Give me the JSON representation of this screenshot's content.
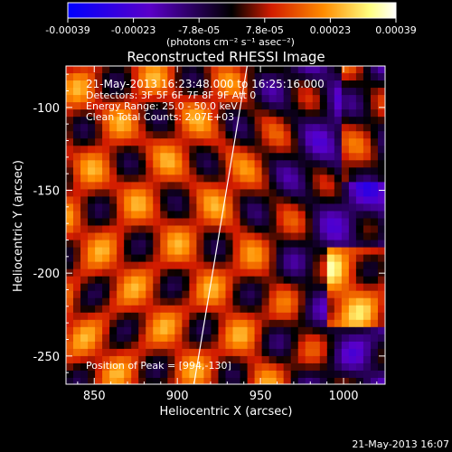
{
  "chart_data": {
    "type": "heatmap",
    "title": "Reconstructed RHESSI Image",
    "xlabel": "Heliocentric X (arcsec)",
    "ylabel": "Heliocentric Y (arcsec)",
    "xlim": [
      833,
      1025
    ],
    "ylim": [
      -267,
      -75
    ],
    "x_ticks": [
      "850",
      "900",
      "950",
      "1000"
    ],
    "y_ticks": [
      "-100",
      "-150",
      "-200",
      "-250"
    ],
    "colorbar": {
      "label": "(photons cm⁻² s⁻¹ asec⁻²)",
      "range": [
        -0.00039,
        0.00039
      ],
      "tick_labels": [
        "-0.00039",
        "-0.00023",
        "-7.8e-05",
        "7.8e-05",
        "0.00023",
        "0.00039"
      ],
      "colors": [
        "#0000ff",
        "#5a00c8",
        "#000000",
        "#d21c00",
        "#ff8c00",
        "#ffff80",
        "#ffffff"
      ]
    },
    "annotations": [
      "21-May-2013 16:23:48.000 to 16:25:16.000",
      "Detectors: 3F 5F 6F 7F 8F 9F Att 0",
      "Energy Range: 25.0 - 50.0 keV",
      "Clean    Total Counts: 2.07E+03",
      "Position of Peak = [994,-130]"
    ],
    "limb_line": {
      "x": [
        910,
        942
      ],
      "y": [
        -267,
        -75
      ]
    },
    "footer": "21-May-2013 16:07"
  }
}
